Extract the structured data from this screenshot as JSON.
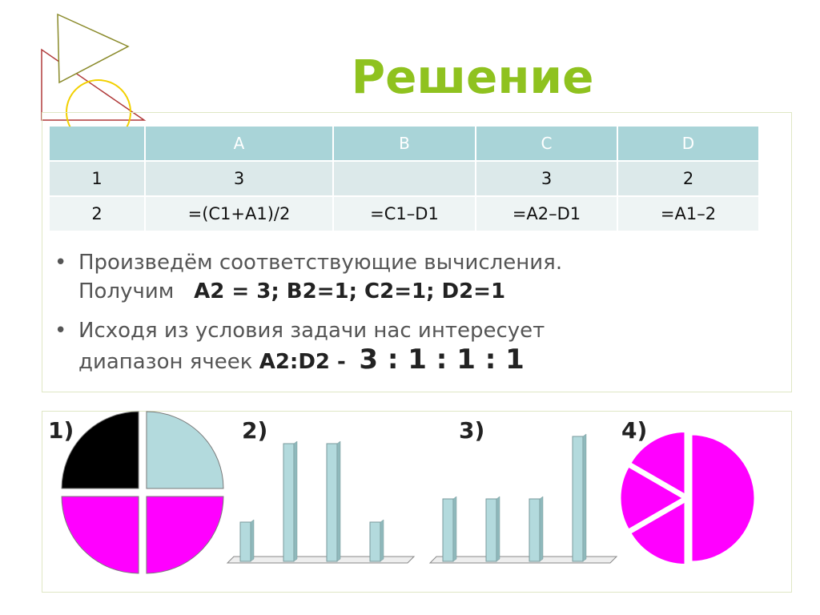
{
  "title": "Решение",
  "table": {
    "header": [
      "",
      "A",
      "B",
      "C",
      "D"
    ],
    "rows": [
      [
        "1",
        "3",
        "",
        "3",
        "2"
      ],
      [
        "2",
        "=(C1+A1)/2",
        "=C1–D1",
        "=A2–D1",
        "=A1–2"
      ]
    ]
  },
  "bullets": {
    "b1_line1": "Произведём соответствующие вычисления.",
    "b1_line2_prefix": "Получим",
    "b1_line2_values": "A2 = 3;  B2=1;   C2=1;  D2=1",
    "b2_line1": "Исходя из условия задачи нас интересует",
    "b2_line2_prefix": "диапазон  ячеек",
    "b2_line2_range": "A2:D2  -",
    "b2_line2_ratio": "3 : 1 : 1 : 1"
  },
  "options": [
    "1)",
    "2)",
    "3)",
    "4)"
  ],
  "colors": {
    "title": "#8fc21f",
    "header_fill": "#a9d4d8",
    "bar_fill": "#b3dadd",
    "magenta": "#ff00ff",
    "black": "#000000"
  },
  "chart_data": [
    {
      "type": "pie",
      "label": "1)",
      "values": [
        1,
        1,
        1,
        1
      ],
      "colors": [
        "#000000",
        "#b3dadd",
        "#ff00ff",
        "#ff00ff"
      ]
    },
    {
      "type": "bar",
      "label": "2)",
      "values": [
        1,
        3,
        3,
        1
      ]
    },
    {
      "type": "bar",
      "label": "3)",
      "values": [
        1,
        1,
        1,
        2
      ]
    },
    {
      "type": "pie",
      "label": "4)",
      "values": [
        3,
        1,
        1,
        1
      ],
      "colors": [
        "#ff00ff",
        "#ff00ff",
        "#ff00ff",
        "#ff00ff"
      ]
    }
  ]
}
